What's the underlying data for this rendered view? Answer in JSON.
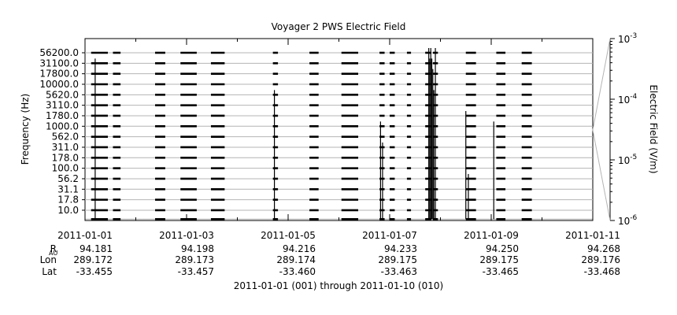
{
  "chart_data": {
    "type": "spectrogram-line-plot",
    "title": "Voyager 2 PWS Electric Field",
    "ylabel": "Frequency (Hz)",
    "right_label": "Electric Field (V/m)",
    "xlabel": "2011-01-01 (001) through 2011-01-10 (010)",
    "y_scale": "log",
    "channel_labels": [
      "56200.0",
      "31100.0",
      "17800.0",
      "10000.0",
      "5620.0",
      "3110.0",
      "1780.0",
      "1000.0",
      "562.0",
      "311.0",
      "178.0",
      "100.0",
      "56.2",
      "31.1",
      "17.8",
      "10.0"
    ],
    "x_ticks": [
      "2011-01-01",
      "2011-01-03",
      "2011-01-05",
      "2011-01-07",
      "2011-01-09",
      "2011-01-11"
    ],
    "x_range_days": [
      0,
      10
    ],
    "colorbar": {
      "scale": "log",
      "range": [
        "1e-6",
        "1e-3"
      ],
      "ticks": [
        {
          "base": "10",
          "exp": "-3"
        },
        {
          "base": "10",
          "exp": "-4"
        },
        {
          "base": "10",
          "exp": "-5"
        },
        {
          "base": "10",
          "exp": "-6"
        }
      ]
    },
    "data_intervals_days": [
      [
        0.12,
        0.45
      ],
      [
        0.55,
        0.7
      ],
      [
        1.38,
        1.58
      ],
      [
        1.88,
        2.2
      ],
      [
        2.48,
        2.75
      ],
      [
        3.7,
        3.8
      ],
      [
        4.42,
        4.6
      ],
      [
        5.05,
        5.38
      ],
      [
        5.8,
        5.9
      ],
      [
        6.0,
        6.1
      ],
      [
        6.34,
        6.42
      ],
      [
        6.7,
        6.82
      ],
      [
        6.85,
        6.95
      ],
      [
        7.5,
        7.7
      ],
      [
        8.1,
        8.28
      ],
      [
        8.6,
        8.8
      ]
    ],
    "bursts": [
      {
        "day": 0.2,
        "top_channel": 1
      },
      {
        "day": 3.73,
        "top_channel": 4
      },
      {
        "day": 5.82,
        "top_channel": 7
      },
      {
        "day": 5.86,
        "top_channel": 9
      },
      {
        "day": 6.77,
        "top_channel": 0
      },
      {
        "day": 6.79,
        "top_channel": 1
      },
      {
        "day": 6.81,
        "top_channel": 0
      },
      {
        "day": 6.83,
        "top_channel": 1
      },
      {
        "day": 6.85,
        "top_channel": 2
      },
      {
        "day": 6.87,
        "top_channel": 4
      },
      {
        "day": 6.9,
        "top_channel": 0
      },
      {
        "day": 7.5,
        "top_channel": 6
      },
      {
        "day": 7.55,
        "top_channel": 12
      },
      {
        "day": 8.05,
        "top_channel": 7
      }
    ],
    "ephemeris": {
      "labels": {
        "r_main": "R",
        "r_sub": "AU",
        "lon": "Lon",
        "lat": "Lat"
      },
      "rows": [
        {
          "r": "94.181",
          "lon": "289.172",
          "lat": "-33.455"
        },
        {
          "r": "94.198",
          "lon": "289.173",
          "lat": "-33.457"
        },
        {
          "r": "94.216",
          "lon": "289.174",
          "lat": "-33.460"
        },
        {
          "r": "94.233",
          "lon": "289.175",
          "lat": "-33.463"
        },
        {
          "r": "94.250",
          "lon": "289.175",
          "lat": "-33.465"
        },
        {
          "r": "94.268",
          "lon": "289.176",
          "lat": "-33.468"
        }
      ]
    }
  }
}
